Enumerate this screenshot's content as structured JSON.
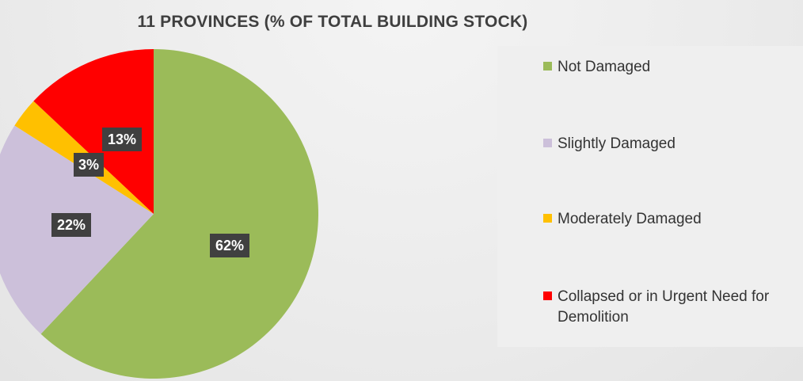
{
  "chart_data": {
    "type": "pie",
    "title": "11 PROVINCES (% OF TOTAL BUILDING STOCK)",
    "legend_position": "right",
    "slices": [
      {
        "label": "Not Damaged",
        "value": 62,
        "display": "62%",
        "color": "#9bbb59"
      },
      {
        "label": "Slightly Damaged",
        "value": 22,
        "display": "22%",
        "color": "#ccc0da"
      },
      {
        "label": "Moderately Damaged",
        "value": 3,
        "display": "3%",
        "color": "#ffc000"
      },
      {
        "label": "Collapsed or in Urgent Need for Demolition",
        "value": 13,
        "display": "13%",
        "color": "#ff0000"
      }
    ],
    "label_box_color": "#404040"
  }
}
